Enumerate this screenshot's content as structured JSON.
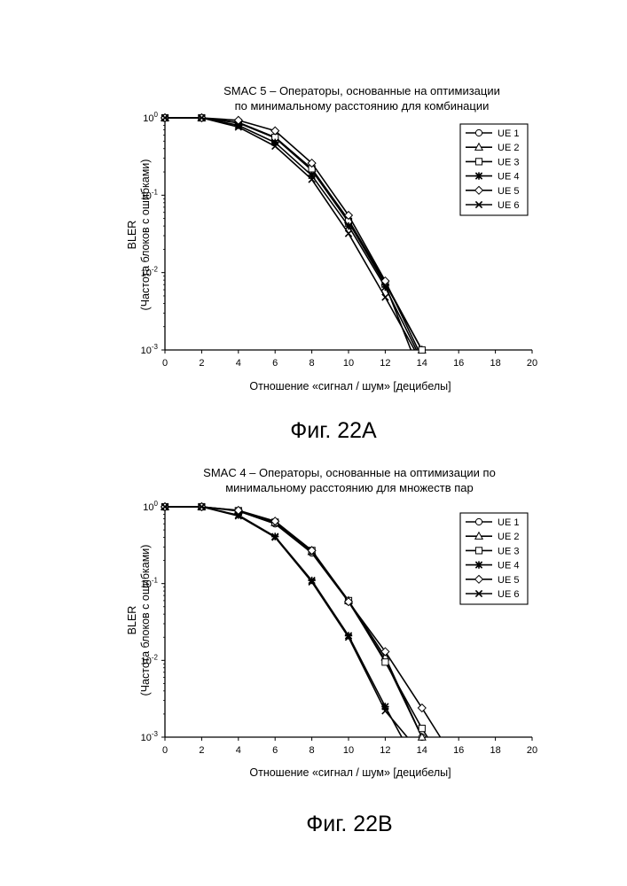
{
  "figures": [
    {
      "caption": "Фиг. 22A",
      "chart_data": {
        "type": "line",
        "title_lines": [
          "SMAC 5 – Операторы, основанные на оптимизации",
          "по минимальному расстоянию для комбинации"
        ],
        "xlabel": "Отношение «сигнал / шум» [децибелы]",
        "ylabel_lines": [
          "BLER",
          "(Частота блоков с ошибками)"
        ],
        "x_scale": "linear",
        "y_scale": "log",
        "xlim": [
          0,
          20
        ],
        "ylim": [
          0.001,
          1
        ],
        "x_ticks": [
          "0",
          "2",
          "4",
          "6",
          "8",
          "10",
          "12",
          "14",
          "16",
          "18",
          "20"
        ],
        "y_ticks": [
          {
            "value": 1,
            "base": "10",
            "exp": "0"
          },
          {
            "value": 0.1,
            "base": "10",
            "exp": "-1"
          },
          {
            "value": 0.01,
            "base": "10",
            "exp": "-2"
          },
          {
            "value": 0.001,
            "base": "10",
            "exp": "-3"
          }
        ],
        "legend_position": "top-right",
        "series": [
          {
            "name": "UE 1",
            "marker": "circle",
            "x": [
              0,
              2,
              4,
              6,
              8,
              10,
              12,
              13.4
            ],
            "y": [
              1,
              1,
              0.86,
              0.55,
              0.21,
              0.045,
              0.007,
              0.001
            ]
          },
          {
            "name": "UE 2",
            "marker": "triangle",
            "x": [
              0,
              2,
              4,
              6,
              8,
              10,
              12,
              14
            ],
            "y": [
              1,
              1,
              0.87,
              0.56,
              0.22,
              0.048,
              0.0075,
              0.001
            ]
          },
          {
            "name": "UE 3",
            "marker": "square",
            "x": [
              0,
              2,
              4,
              6,
              8,
              10,
              12,
              14
            ],
            "y": [
              1,
              1,
              0.87,
              0.56,
              0.22,
              0.046,
              0.0072,
              0.001
            ]
          },
          {
            "name": "UE 4",
            "marker": "star",
            "x": [
              0,
              2,
              4,
              6,
              8,
              10,
              12,
              13.7
            ],
            "y": [
              1,
              1,
              0.8,
              0.48,
              0.18,
              0.04,
              0.0065,
              0.001
            ]
          },
          {
            "name": "UE 5",
            "marker": "diamond",
            "x": [
              0,
              2,
              4,
              6,
              8,
              10,
              12,
              13.8
            ],
            "y": [
              1,
              1,
              0.93,
              0.68,
              0.26,
              0.055,
              0.0078,
              0.001
            ]
          },
          {
            "name": "UE 6",
            "marker": "x",
            "x": [
              0,
              2,
              4,
              6,
              8,
              10,
              12,
              13.6
            ],
            "y": [
              1,
              1,
              0.76,
              0.43,
              0.16,
              0.032,
              0.0048,
              0.001
            ]
          }
        ]
      }
    },
    {
      "caption": "Фиг. 22B",
      "chart_data": {
        "type": "line",
        "title_lines": [
          "SMAC 4 – Операторы, основанные на оптимизации по",
          "минимальному расстоянию для множеств пар"
        ],
        "xlabel": "Отношение «сигнал / шум» [децибелы]",
        "ylabel_lines": [
          "BLER",
          "(Частота блоков с ошибками)"
        ],
        "x_scale": "linear",
        "y_scale": "log",
        "xlim": [
          0,
          20
        ],
        "ylim": [
          0.001,
          1
        ],
        "x_ticks": [
          "0",
          "2",
          "4",
          "6",
          "8",
          "10",
          "12",
          "14",
          "16",
          "18",
          "20"
        ],
        "y_ticks": [
          {
            "value": 1,
            "base": "10",
            "exp": "0"
          },
          {
            "value": 0.1,
            "base": "10",
            "exp": "-1"
          },
          {
            "value": 0.01,
            "base": "10",
            "exp": "-2"
          },
          {
            "value": 0.001,
            "base": "10",
            "exp": "-3"
          }
        ],
        "legend_position": "top-right",
        "series": [
          {
            "name": "UE 1",
            "marker": "circle",
            "x": [
              0,
              2,
              4,
              6,
              8,
              10,
              12,
              14
            ],
            "y": [
              1,
              1,
              0.88,
              0.6,
              0.25,
              0.058,
              0.01,
              0.001
            ]
          },
          {
            "name": "UE 2",
            "marker": "triangle",
            "x": [
              0,
              2,
              4,
              6,
              8,
              10,
              12,
              14
            ],
            "y": [
              1,
              1,
              0.89,
              0.62,
              0.26,
              0.06,
              0.011,
              0.001
            ]
          },
          {
            "name": "UE 3",
            "marker": "square",
            "x": [
              0,
              2,
              4,
              6,
              8,
              10,
              12,
              14,
              14.3
            ],
            "y": [
              1,
              1,
              0.89,
              0.63,
              0.27,
              0.06,
              0.0095,
              0.0013,
              0.001
            ]
          },
          {
            "name": "UE 4",
            "marker": "star",
            "x": [
              0,
              2,
              4,
              6,
              8,
              10,
              12,
              12.9
            ],
            "y": [
              1,
              1,
              0.78,
              0.41,
              0.11,
              0.021,
              0.0025,
              0.001
            ]
          },
          {
            "name": "UE 5",
            "marker": "diamond",
            "x": [
              0,
              2,
              4,
              6,
              8,
              10,
              12,
              14,
              15
            ],
            "y": [
              1,
              1,
              0.9,
              0.65,
              0.27,
              0.058,
              0.013,
              0.0024,
              0.001
            ]
          },
          {
            "name": "UE 6",
            "marker": "x",
            "x": [
              0,
              2,
              4,
              6,
              8,
              10,
              12,
              13.2
            ],
            "y": [
              1,
              1,
              0.76,
              0.4,
              0.105,
              0.02,
              0.0022,
              0.001
            ]
          }
        ]
      }
    }
  ]
}
